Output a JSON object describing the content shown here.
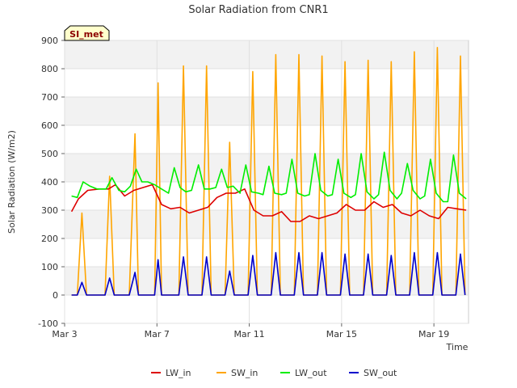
{
  "chart_data": {
    "type": "line",
    "title": "Solar Radiation from CNR1",
    "xlabel": "Time",
    "ylabel": "Solar Radiation (W/m2)",
    "badge": "SI_met",
    "ylim": [
      -100,
      900
    ],
    "xlim": [
      3.0,
      20.5
    ],
    "y_ticks": [
      -100,
      0,
      100,
      200,
      300,
      400,
      500,
      600,
      700,
      800,
      900
    ],
    "x_ticks": [
      {
        "value": 3,
        "label": "Mar 3"
      },
      {
        "value": 7,
        "label": "Mar 7"
      },
      {
        "value": 11,
        "label": "Mar 11"
      },
      {
        "value": 15,
        "label": "Mar 15"
      },
      {
        "value": 19,
        "label": "Mar 19"
      }
    ],
    "grid": true,
    "legend_position": "bottom",
    "series": [
      {
        "name": "LW_in",
        "color": "#dd0000",
        "x": [
          3.3,
          3.6,
          4.0,
          4.5,
          4.9,
          5.2,
          5.6,
          6.0,
          6.4,
          6.8,
          7.2,
          7.6,
          8.0,
          8.4,
          8.8,
          9.2,
          9.6,
          10.0,
          10.4,
          10.8,
          11.2,
          11.6,
          12.0,
          12.4,
          12.8,
          13.2,
          13.6,
          14.0,
          14.4,
          14.8,
          15.2,
          15.6,
          16.0,
          16.4,
          16.8,
          17.2,
          17.6,
          18.0,
          18.4,
          18.8,
          19.2,
          19.6,
          20.0,
          20.4
        ],
        "y": [
          295,
          340,
          370,
          375,
          375,
          390,
          350,
          370,
          380,
          390,
          320,
          305,
          310,
          290,
          300,
          310,
          345,
          360,
          360,
          375,
          300,
          280,
          280,
          295,
          260,
          260,
          280,
          270,
          280,
          290,
          320,
          300,
          300,
          330,
          310,
          320,
          290,
          280,
          300,
          280,
          270,
          310,
          305,
          300
        ]
      },
      {
        "name": "SW_in",
        "color": "#ffa500",
        "x": [
          3.3,
          3.55,
          3.75,
          3.95,
          4.4,
          4.75,
          4.95,
          5.15,
          5.4,
          5.8,
          6.05,
          6.2,
          6.35,
          6.6,
          6.9,
          7.05,
          7.2,
          7.4,
          7.65,
          7.95,
          8.15,
          8.35,
          8.7,
          8.95,
          9.15,
          9.35,
          9.7,
          9.95,
          10.15,
          10.35,
          10.7,
          10.95,
          11.15,
          11.35,
          11.7,
          11.95,
          12.15,
          12.35,
          12.7,
          12.95,
          13.15,
          13.35,
          13.7,
          13.95,
          14.15,
          14.35,
          14.7,
          14.95,
          15.15,
          15.35,
          15.7,
          15.95,
          16.15,
          16.35,
          16.7,
          16.95,
          17.15,
          17.35,
          17.7,
          17.95,
          18.15,
          18.35,
          18.7,
          18.95,
          19.15,
          19.35,
          19.7,
          19.95,
          20.15,
          20.35
        ],
        "y": [
          0,
          0,
          290,
          0,
          0,
          0,
          420,
          0,
          0,
          0,
          570,
          0,
          0,
          0,
          0,
          750,
          0,
          0,
          0,
          0,
          810,
          0,
          0,
          0,
          810,
          0,
          0,
          0,
          540,
          0,
          0,
          0,
          790,
          0,
          0,
          0,
          850,
          0,
          0,
          0,
          850,
          0,
          0,
          0,
          845,
          0,
          0,
          0,
          825,
          0,
          0,
          0,
          830,
          0,
          0,
          0,
          825,
          0,
          0,
          0,
          860,
          0,
          0,
          0,
          875,
          0,
          0,
          0,
          845,
          0
        ]
      },
      {
        "name": "LW_out",
        "color": "#00ee00",
        "x": [
          3.3,
          3.55,
          3.8,
          4.1,
          4.4,
          4.8,
          5.05,
          5.35,
          5.6,
          5.85,
          6.1,
          6.35,
          6.6,
          6.9,
          7.2,
          7.5,
          7.75,
          8.0,
          8.25,
          8.5,
          8.8,
          9.05,
          9.3,
          9.55,
          9.8,
          10.05,
          10.3,
          10.6,
          10.85,
          11.1,
          11.4,
          11.6,
          11.85,
          12.1,
          12.4,
          12.6,
          12.85,
          13.1,
          13.4,
          13.6,
          13.85,
          14.1,
          14.4,
          14.6,
          14.85,
          15.1,
          15.4,
          15.6,
          15.85,
          16.1,
          16.4,
          16.6,
          16.85,
          17.1,
          17.4,
          17.6,
          17.85,
          18.1,
          18.4,
          18.6,
          18.85,
          19.1,
          19.4,
          19.6,
          19.85,
          20.1,
          20.4
        ],
        "y": [
          350,
          345,
          400,
          385,
          375,
          375,
          415,
          370,
          365,
          385,
          445,
          400,
          400,
          390,
          375,
          360,
          450,
          380,
          365,
          370,
          460,
          375,
          375,
          380,
          445,
          380,
          385,
          360,
          460,
          365,
          360,
          355,
          455,
          360,
          355,
          360,
          480,
          360,
          350,
          355,
          500,
          370,
          350,
          355,
          480,
          360,
          345,
          355,
          500,
          365,
          340,
          355,
          505,
          370,
          340,
          360,
          465,
          370,
          340,
          350,
          480,
          360,
          330,
          330,
          495,
          360,
          340
        ]
      },
      {
        "name": "SW_out",
        "color": "#0000cc",
        "x": [
          3.3,
          3.55,
          3.75,
          3.95,
          4.4,
          4.75,
          4.95,
          5.15,
          5.4,
          5.8,
          6.05,
          6.2,
          6.35,
          6.6,
          6.9,
          7.05,
          7.2,
          7.4,
          7.65,
          7.95,
          8.15,
          8.35,
          8.7,
          8.95,
          9.15,
          9.35,
          9.7,
          9.95,
          10.15,
          10.35,
          10.7,
          10.95,
          11.15,
          11.35,
          11.7,
          11.95,
          12.15,
          12.35,
          12.7,
          12.95,
          13.15,
          13.35,
          13.7,
          13.95,
          14.15,
          14.35,
          14.7,
          14.95,
          15.15,
          15.35,
          15.7,
          15.95,
          16.15,
          16.35,
          16.7,
          16.95,
          17.15,
          17.35,
          17.7,
          17.95,
          18.15,
          18.35,
          18.7,
          18.95,
          19.15,
          19.35,
          19.7,
          19.95,
          20.15,
          20.35
        ],
        "y": [
          0,
          0,
          45,
          0,
          0,
          0,
          60,
          0,
          0,
          0,
          80,
          0,
          0,
          0,
          0,
          125,
          0,
          0,
          0,
          0,
          135,
          0,
          0,
          0,
          135,
          0,
          0,
          0,
          85,
          0,
          0,
          0,
          140,
          0,
          0,
          0,
          150,
          0,
          0,
          0,
          150,
          0,
          0,
          0,
          150,
          0,
          0,
          0,
          145,
          0,
          0,
          0,
          145,
          0,
          0,
          0,
          140,
          0,
          0,
          0,
          150,
          0,
          0,
          0,
          150,
          0,
          0,
          0,
          145,
          0
        ]
      }
    ]
  }
}
